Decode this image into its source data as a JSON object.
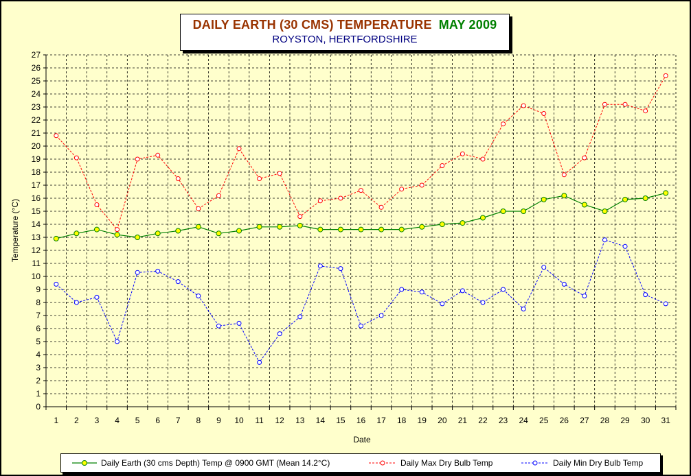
{
  "title": {
    "main": "DAILY EARTH (30 CMS) TEMPERATURE",
    "month": "MAY 2009",
    "subtitle": "ROYSTON, HERTFORDSHIRE"
  },
  "colors": {
    "background": "#ffffcc",
    "earth": "#008000",
    "earth_marker": "#ffff00",
    "max": "#ff0000",
    "min": "#0000ff"
  },
  "chart_data": {
    "type": "line",
    "xlabel": "Date",
    "ylabel": "Temperature (°C)",
    "ylim": [
      0,
      27
    ],
    "grid": true,
    "legend_position": "bottom",
    "x": [
      1,
      2,
      3,
      4,
      5,
      6,
      7,
      8,
      9,
      10,
      11,
      12,
      13,
      14,
      15,
      16,
      17,
      18,
      19,
      20,
      21,
      22,
      23,
      24,
      25,
      26,
      27,
      28,
      29,
      30,
      31
    ],
    "series": [
      {
        "name": "Daily Earth (30 cms Depth) Temp @ 0900 GMT (Mean 14.2°C)",
        "style": "solid",
        "values": [
          12.9,
          13.3,
          13.6,
          13.2,
          13.0,
          13.3,
          13.5,
          13.8,
          13.3,
          13.5,
          13.8,
          13.8,
          13.9,
          13.6,
          13.6,
          13.6,
          13.6,
          13.6,
          13.8,
          14.0,
          14.1,
          14.5,
          15.0,
          15.0,
          15.9,
          16.2,
          15.5,
          15.0,
          15.9,
          16.0,
          16.4
        ]
      },
      {
        "name": "Daily Max Dry Bulb Temp",
        "style": "dashed",
        "values": [
          20.8,
          19.1,
          15.5,
          13.6,
          19.0,
          19.3,
          17.5,
          15.2,
          16.2,
          19.8,
          17.5,
          17.9,
          14.6,
          15.8,
          16.0,
          16.6,
          15.3,
          16.7,
          17.0,
          18.5,
          19.4,
          19.0,
          21.7,
          23.1,
          22.5,
          17.8,
          19.1,
          23.2,
          23.2,
          22.7,
          25.4
        ]
      },
      {
        "name": "Daily Min Dry Bulb Temp",
        "style": "dashed",
        "values": [
          9.4,
          8.0,
          8.4,
          5.0,
          10.3,
          10.4,
          9.6,
          8.5,
          6.2,
          6.4,
          3.4,
          5.6,
          6.9,
          10.8,
          10.6,
          6.2,
          7.0,
          9.0,
          8.8,
          7.9,
          8.9,
          8.0,
          9.0,
          7.5,
          10.7,
          9.4,
          8.5,
          12.8,
          12.3,
          8.6,
          7.9
        ]
      }
    ]
  }
}
